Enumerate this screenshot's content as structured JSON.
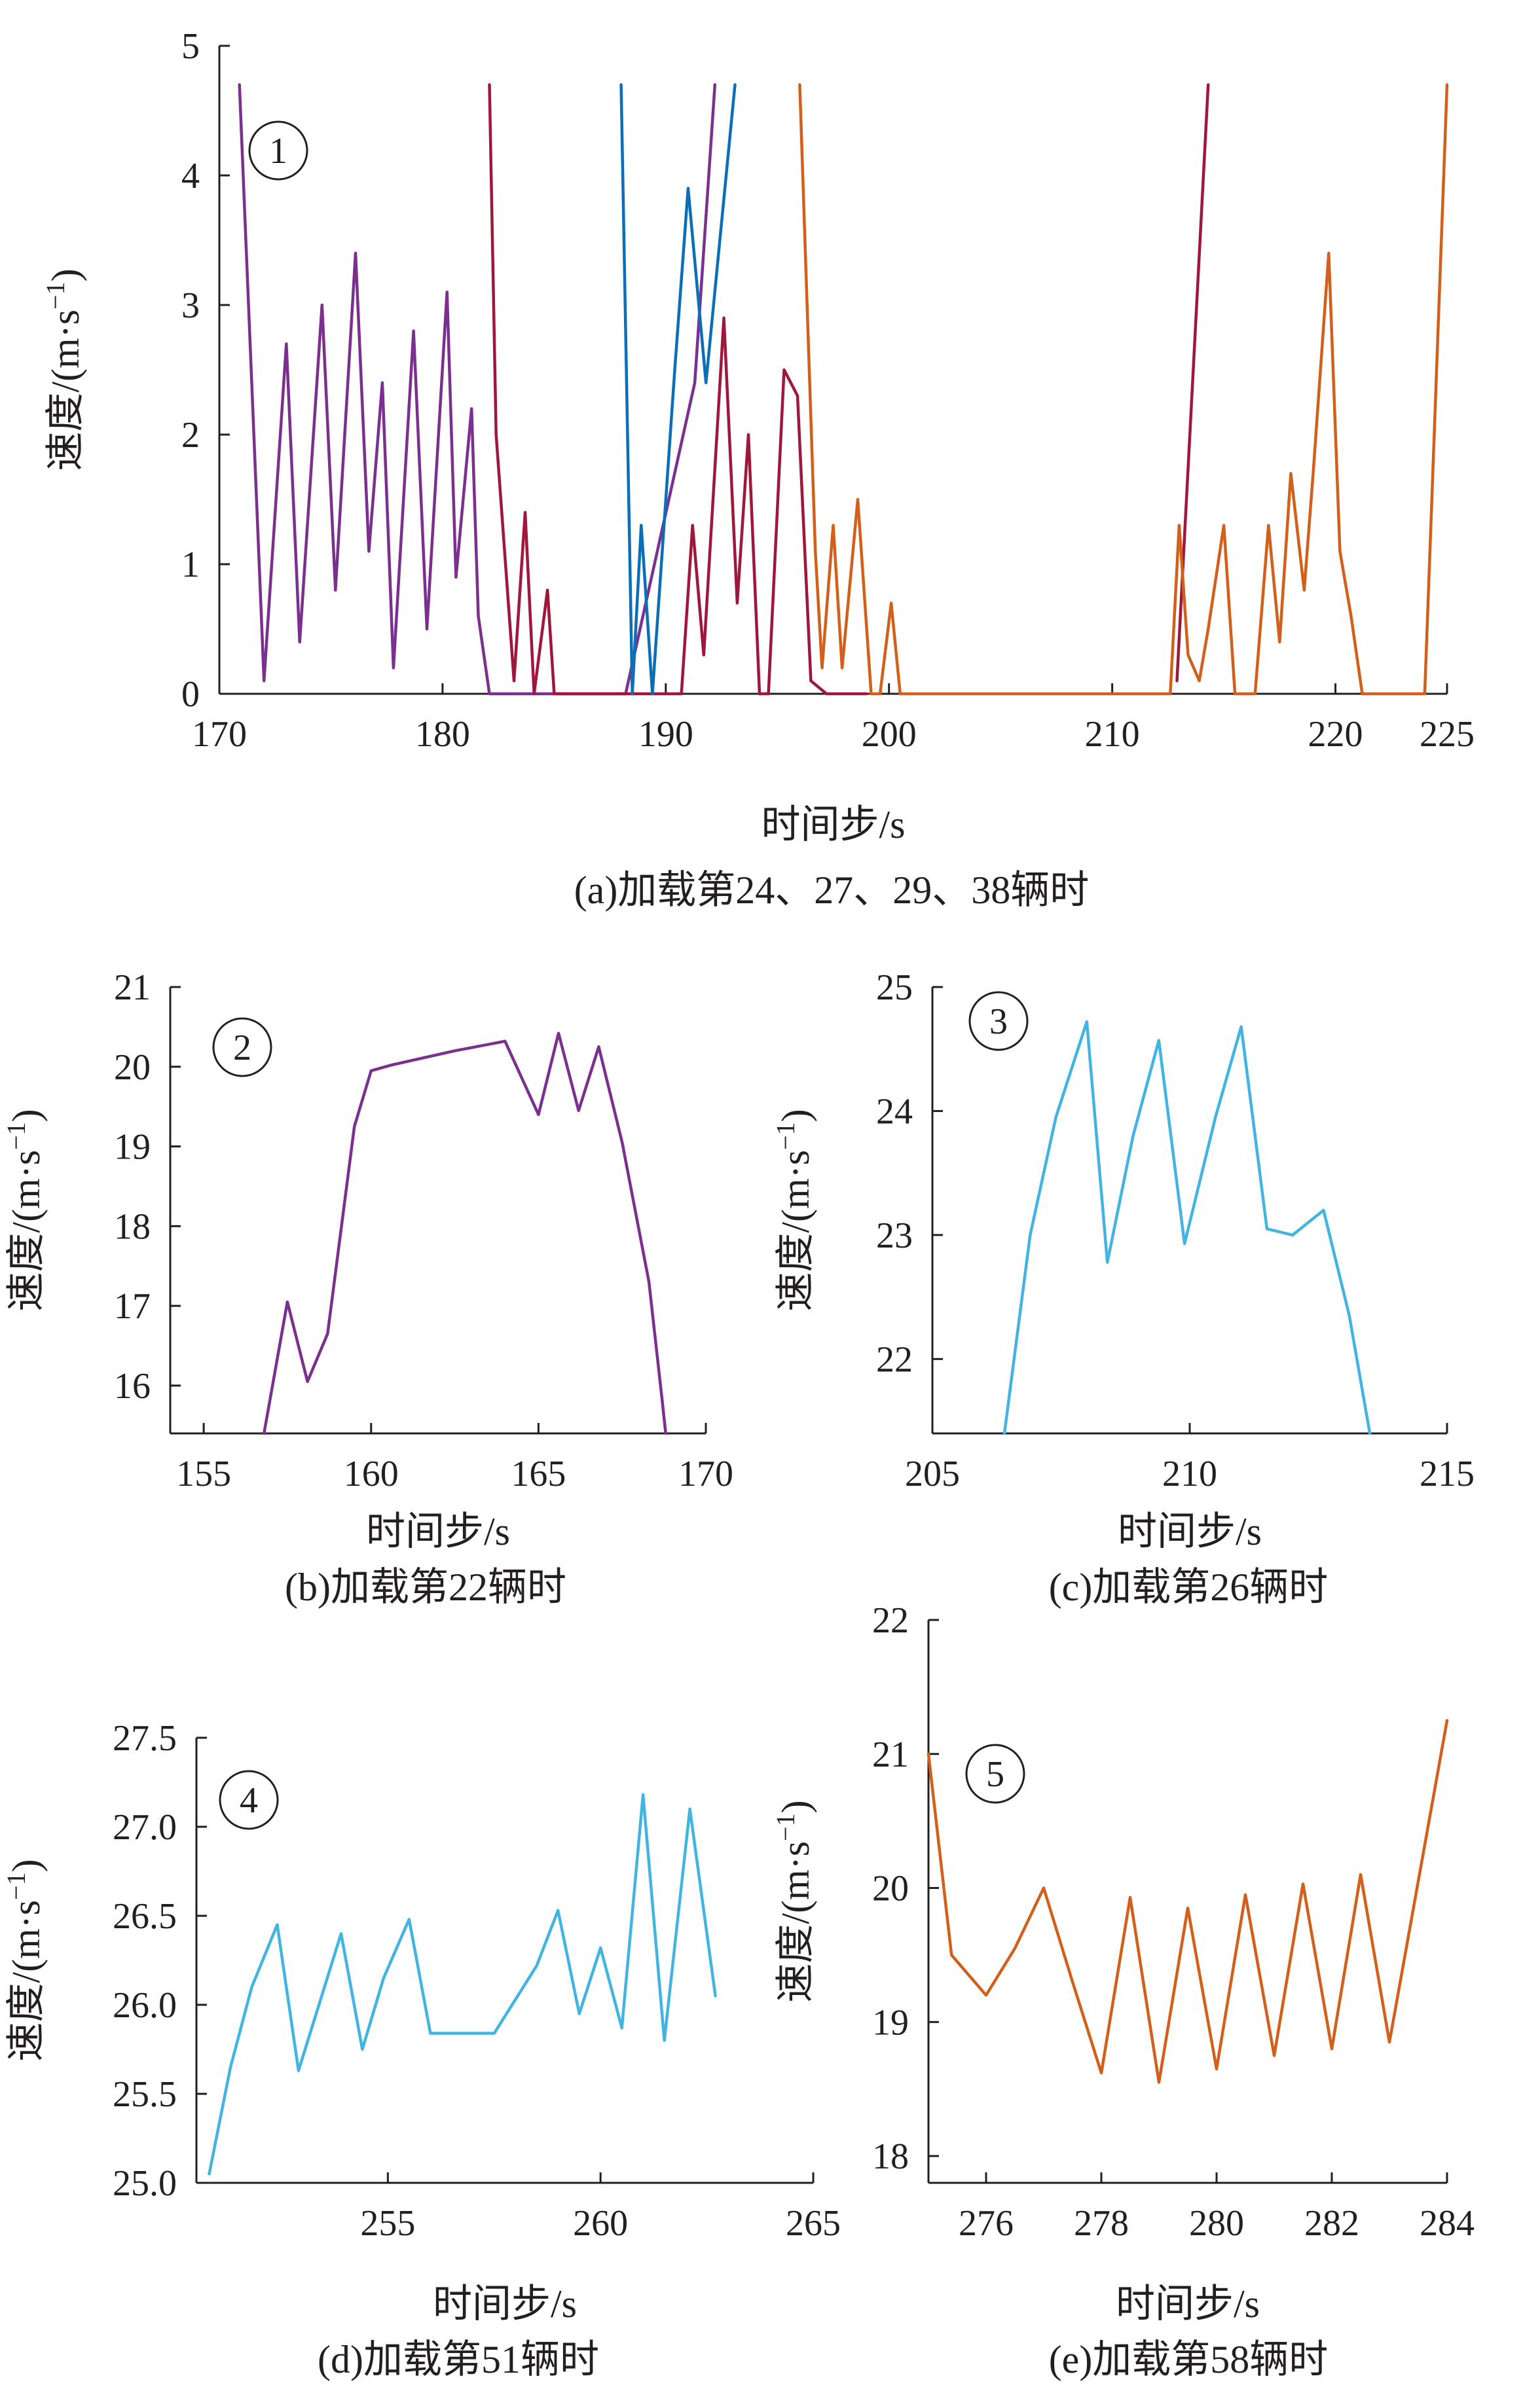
{
  "chart_data": [
    {
      "id": "a",
      "type": "line",
      "caption": "(a)加载第24、27、29、38辆时",
      "marker": "1",
      "xlabel": "时间步/s",
      "ylabel": "速度/(m·s",
      "ylabel_sup": "−1",
      "ylabel_close": ")",
      "xlim": [
        170,
        225
      ],
      "ylim": [
        0,
        5
      ],
      "xticks": [
        "170",
        "180",
        "190",
        "200",
        "210",
        "220",
        "225"
      ],
      "yticks": [
        "0",
        "1",
        "2",
        "3",
        "4",
        "5"
      ],
      "series": [
        {
          "color": "#7b2f8e",
          "x": [
            170.9,
            172,
            173,
            173.6,
            174.6,
            175.2,
            176.1,
            176.7,
            177.3,
            177.8,
            178.7,
            179.3,
            180.2,
            180.6,
            181.3,
            181.6,
            182.1,
            186,
            188.2,
            191.3,
            192.2
          ],
          "y": [
            4.7,
            0.1,
            2.7,
            0.4,
            3.0,
            0.8,
            3.4,
            1.1,
            2.4,
            0.2,
            2.8,
            0.5,
            3.1,
            0.9,
            2.2,
            0.6,
            0,
            0,
            0,
            2.4,
            4.7
          ]
        },
        {
          "color": "#a0173c",
          "x": [
            182.1,
            182.4,
            183.2,
            183.7,
            184.1,
            184.7,
            185,
            186,
            190.7,
            191.2,
            191.7,
            192.6,
            193.2,
            193.7,
            194.2,
            194.6,
            195.3,
            195.9,
            196.5,
            197.2,
            198,
            199
          ],
          "y": [
            4.7,
            2.0,
            0.1,
            1.4,
            0,
            0.8,
            0,
            0,
            0,
            1.3,
            0.3,
            2.9,
            0.7,
            2.0,
            0,
            0,
            2.5,
            2.3,
            0.1,
            0,
            0,
            0
          ]
        },
        {
          "color": "#0b6fb8",
          "x": [
            188,
            188.5,
            188.9,
            189.4,
            190.4,
            191,
            191.8,
            193.1
          ],
          "y": [
            4.7,
            0,
            1.3,
            0,
            2.5,
            3.9,
            2.4,
            4.7
          ]
        },
        {
          "color": "#a0173c",
          "x": [
            212.9,
            214.3
          ],
          "y": [
            0.1,
            4.7
          ]
        },
        {
          "color": "#d2601a",
          "x": [
            196,
            196.7,
            197,
            197.5,
            197.9,
            198.6,
            199.2,
            199.6,
            200.1,
            200.5,
            201.5,
            212.6,
            213,
            213.4,
            213.9,
            214.3,
            215,
            215.5,
            216.4,
            217,
            217.5,
            218,
            218.6,
            219,
            219.7,
            220.2,
            220.7,
            221.2,
            224,
            225
          ],
          "y": [
            4.7,
            1.1,
            0.2,
            1.3,
            0.2,
            1.5,
            0,
            0,
            0.7,
            0,
            0,
            0,
            1.3,
            0.3,
            0.1,
            0.5,
            1.3,
            0,
            0,
            1.3,
            0.4,
            1.7,
            0.8,
            1.7,
            3.4,
            1.1,
            0.6,
            0,
            0,
            4.7
          ]
        }
      ]
    },
    {
      "id": "b",
      "type": "line",
      "caption": "(b)加载第22辆时",
      "marker": "2",
      "xlabel": "时间步/s",
      "ylabel": "速度/(m·s",
      "ylabel_sup": "−1",
      "ylabel_close": ")",
      "xlim": [
        154,
        170
      ],
      "ylim": [
        15.4,
        21
      ],
      "xticks": [
        "155",
        "160",
        "165",
        "170"
      ],
      "yticks": [
        "16",
        "17",
        "18",
        "19",
        "20",
        "21"
      ],
      "series": [
        {
          "color": "#7b2f8e",
          "x": [
            156.8,
            157.5,
            158.1,
            158.7,
            159.5,
            160,
            160.6,
            162.5,
            164,
            165,
            165.6,
            166.2,
            166.8,
            167.5,
            168.3,
            168.7,
            168.8
          ],
          "y": [
            15.4,
            17.05,
            16.05,
            16.65,
            19.25,
            19.95,
            20.02,
            20.2,
            20.32,
            19.4,
            20.42,
            19.45,
            20.25,
            19.05,
            17.3,
            15.8,
            15.4
          ]
        }
      ]
    },
    {
      "id": "c",
      "type": "line",
      "caption": "(c)加载第26辆时",
      "marker": "3",
      "xlabel": "时间步/s",
      "ylabel": "速度/(m·s",
      "ylabel_sup": "−1",
      "ylabel_close": ")",
      "xlim": [
        205,
        215
      ],
      "ylim": [
        21.4,
        25
      ],
      "xticks": [
        "205",
        "210",
        "215"
      ],
      "yticks": [
        "22",
        "23",
        "24",
        "25"
      ],
      "series": [
        {
          "color": "#41b4e2",
          "x": [
            206.4,
            206.9,
            207.4,
            208,
            208.4,
            208.9,
            209.4,
            209.9,
            210.5,
            211,
            211.5,
            212,
            212.6,
            213.1,
            213.5
          ],
          "y": [
            21.4,
            23.0,
            23.95,
            24.72,
            22.78,
            23.8,
            24.57,
            22.93,
            23.95,
            24.68,
            23.05,
            23.0,
            23.2,
            22.35,
            21.4
          ]
        }
      ]
    },
    {
      "id": "d",
      "type": "line",
      "caption": "(d)加载第51辆时",
      "marker": "4",
      "xlabel": "时间步/s",
      "ylabel": "速度/(m·s",
      "ylabel_sup": "−1",
      "ylabel_close": ")",
      "xlim": [
        250.5,
        265
      ],
      "ylim": [
        25,
        27.5
      ],
      "xticks": [
        "255",
        "260",
        "265"
      ],
      "yticks": [
        "25.0",
        "25.5",
        "26.0",
        "26.5",
        "27.0",
        "27.5"
      ],
      "series": [
        {
          "color": "#41b4e2",
          "x": [
            250.8,
            251.3,
            251.8,
            252.4,
            252.9,
            253.9,
            254.4,
            254.9,
            255.5,
            256,
            257.5,
            258.5,
            259,
            259.5,
            260,
            260.5,
            261,
            261.5,
            262.1,
            262.7
          ],
          "y": [
            25.05,
            25.65,
            26.1,
            26.45,
            25.63,
            26.4,
            25.75,
            26.15,
            26.48,
            25.84,
            25.84,
            26.22,
            26.53,
            25.95,
            26.32,
            25.87,
            27.18,
            25.8,
            27.1,
            26.05
          ]
        }
      ]
    },
    {
      "id": "e",
      "type": "line",
      "caption": "(e)加载第58辆时",
      "marker": "5",
      "xlabel": "时间步/s",
      "ylabel": "速度/(m·s",
      "ylabel_sup": "−1",
      "ylabel_close": ")",
      "xlim": [
        275,
        284
      ],
      "ylim": [
        17.8,
        22
      ],
      "xticks": [
        "276",
        "278",
        "280",
        "282",
        "284"
      ],
      "yticks": [
        "18",
        "19",
        "20",
        "21",
        "22"
      ],
      "series": [
        {
          "color": "#d2601a",
          "x": [
            275,
            275.4,
            276,
            276.5,
            277,
            277.5,
            278,
            278.5,
            279,
            279.5,
            280,
            280.5,
            281,
            281.5,
            282,
            282.5,
            283,
            284
          ],
          "y": [
            21.0,
            19.5,
            19.2,
            19.55,
            20.0,
            19.3,
            18.62,
            19.93,
            18.55,
            19.85,
            18.65,
            19.95,
            18.75,
            20.03,
            18.8,
            20.1,
            18.85,
            21.25
          ]
        }
      ]
    }
  ]
}
